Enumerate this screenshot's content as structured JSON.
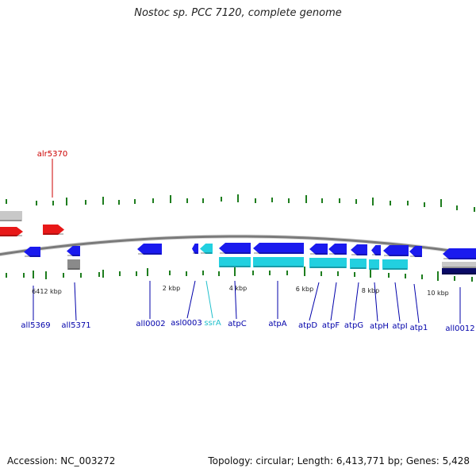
{
  "title": "Nostoc sp. PCC 7120, complete genome",
  "footer": {
    "accession": "Accession: NC_003272",
    "summary": "Topology: circular; Length: 6,413,771 bp; Genes: 5,428"
  },
  "colors": {
    "backbone": "#7a7a7a",
    "tick": "#1e7d1e",
    "blue": "#1a1aee",
    "cyan": "#22d0e0",
    "red": "#e81818",
    "gray": "#8a8a8a",
    "silver": "#c8c8c8",
    "navy": "#0a0a66",
    "label_blue": "#0000aa",
    "label_red": "#cc0000",
    "label_cyan": "#22c0cc"
  },
  "ruler_labels": [
    "6412 kbp",
    "2 kbp",
    "4 kbp",
    "6 kbp",
    "8 kbp",
    "10 kbp"
  ],
  "features": [
    {
      "name": "alr5370",
      "type": "CDS",
      "strand": "+",
      "color": "red"
    },
    {
      "name": "all5369",
      "type": "CDS",
      "strand": "-",
      "color": "blue"
    },
    {
      "name": "all5371",
      "type": "CDS",
      "strand": "-",
      "color": "blue"
    },
    {
      "name": "all0002",
      "type": "CDS",
      "strand": "-",
      "color": "blue"
    },
    {
      "name": "asl0003",
      "type": "CDS",
      "strand": "-",
      "color": "blue"
    },
    {
      "name": "ssrA",
      "type": "RNA",
      "strand": "-",
      "color": "cyan"
    },
    {
      "name": "atpC",
      "type": "CDS",
      "strand": "-",
      "color": "blue"
    },
    {
      "name": "atpA",
      "type": "CDS",
      "strand": "-",
      "color": "blue"
    },
    {
      "name": "atpD",
      "type": "CDS",
      "strand": "-",
      "color": "blue"
    },
    {
      "name": "atpF",
      "type": "CDS",
      "strand": "-",
      "color": "blue"
    },
    {
      "name": "atpG",
      "type": "CDS",
      "strand": "-",
      "color": "blue"
    },
    {
      "name": "atpH",
      "type": "CDS",
      "strand": "-",
      "color": "blue"
    },
    {
      "name": "atpI",
      "type": "CDS",
      "strand": "-",
      "color": "blue"
    },
    {
      "name": "atp1",
      "type": "CDS",
      "strand": "-",
      "color": "blue"
    },
    {
      "name": "all0012",
      "type": "CDS",
      "strand": "-",
      "color": "blue"
    }
  ]
}
